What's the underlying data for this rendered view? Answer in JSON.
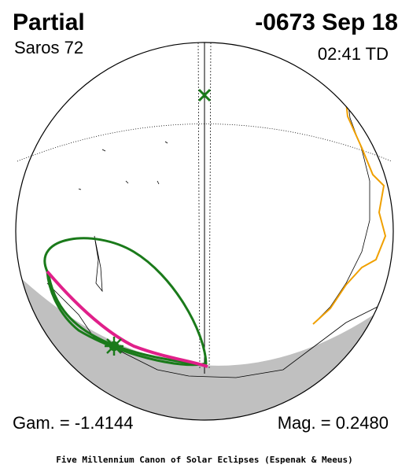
{
  "header": {
    "type": "Partial",
    "saros": "Saros  72",
    "date": "-0673 Sep 18",
    "time": "02:41 TD"
  },
  "footer": {
    "gamma": "Gam. = -1.4144",
    "magnitude": "Mag. = 0.2480",
    "credit": "Five Millennium Canon of Solar Eclipses (Espenak & Meeus)"
  }
}
